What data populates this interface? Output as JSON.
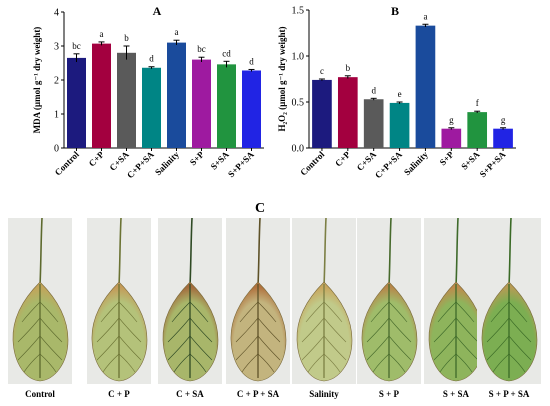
{
  "chart_data": [
    {
      "type": "bar",
      "panel": "A",
      "title": "A",
      "ylabel": "MDA (µmol g⁻¹ dry weight)",
      "ylim": [
        0,
        4
      ],
      "yticks": [
        "0",
        "1",
        "2",
        "3",
        "4"
      ],
      "grid": false,
      "categories": [
        "Control",
        "C+P",
        "C+SA",
        "C+P+SA",
        "Salinity",
        "S+P",
        "S+SA",
        "S+P+SA"
      ],
      "values": [
        2.65,
        3.07,
        2.8,
        2.36,
        3.1,
        2.6,
        2.46,
        2.28
      ],
      "errors": [
        0.12,
        0.05,
        0.2,
        0.03,
        0.07,
        0.07,
        0.09,
        0.03
      ],
      "letters": [
        "bc",
        "a",
        "b",
        "d",
        "a",
        "bc",
        "cd",
        "d"
      ],
      "colors": [
        "#1c1a7e",
        "#a3003f",
        "#5a5a5a",
        "#008585",
        "#1a4b9c",
        "#9e1aa0",
        "#21943f",
        "#2124e4"
      ]
    },
    {
      "type": "bar",
      "panel": "B",
      "title": "B",
      "ylabel": "H₂O₂ (µmol g⁻¹ dry weight)",
      "ylim": [
        0,
        1.5
      ],
      "yticks": [
        "0.0",
        "0.5",
        "1.0",
        "1.5"
      ],
      "grid": false,
      "categories": [
        "Control",
        "C+P",
        "C+SA",
        "C+P+SA",
        "Salinity",
        "S+P",
        "S+SA",
        "S+P+SA"
      ],
      "values": [
        0.74,
        0.77,
        0.53,
        0.49,
        1.33,
        0.21,
        0.39,
        0.21
      ],
      "errors": [
        0.01,
        0.015,
        0.01,
        0.01,
        0.015,
        0.01,
        0.01,
        0.01
      ],
      "letters": [
        "c",
        "b",
        "d",
        "e",
        "a",
        "g",
        "f",
        "g"
      ],
      "colors": [
        "#1c1a7e",
        "#a3003f",
        "#5a5a5a",
        "#008585",
        "#1a4b9c",
        "#9e1aa0",
        "#21943f",
        "#2124e4"
      ]
    }
  ],
  "panel_c": {
    "label": "C",
    "leaves": [
      {
        "caption": "Control",
        "tone": "#a9b86a",
        "spot": "#c3a45a",
        "vein": "#5d6a2e"
      },
      {
        "caption": "C + P",
        "tone": "#b4c27a",
        "spot": "#c49a58",
        "vein": "#6b7334"
      },
      {
        "caption": "C + SA",
        "tone": "#a8b66a",
        "spot": "#a36a3c",
        "vein": "#2f4a24"
      },
      {
        "caption": "C + P + SA",
        "tone": "#c3b47e",
        "spot": "#b0723e",
        "vein": "#5e5228"
      },
      {
        "caption": "Salinity",
        "tone": "#c1ca8a",
        "spot": "#c8a65e",
        "vein": "#7c7f44"
      },
      {
        "caption": "S + P",
        "tone": "#9fbc6a",
        "spot": "#b7864a",
        "vein": "#476a2c"
      },
      {
        "caption": "S + SA",
        "tone": "#8eb45c",
        "spot": "#bf8a4c",
        "vein": "#3e6a2a"
      },
      {
        "caption": "S + P + SA",
        "tone": "#7cae52",
        "spot": "#b79a54",
        "vein": "#3a6a26"
      }
    ]
  }
}
